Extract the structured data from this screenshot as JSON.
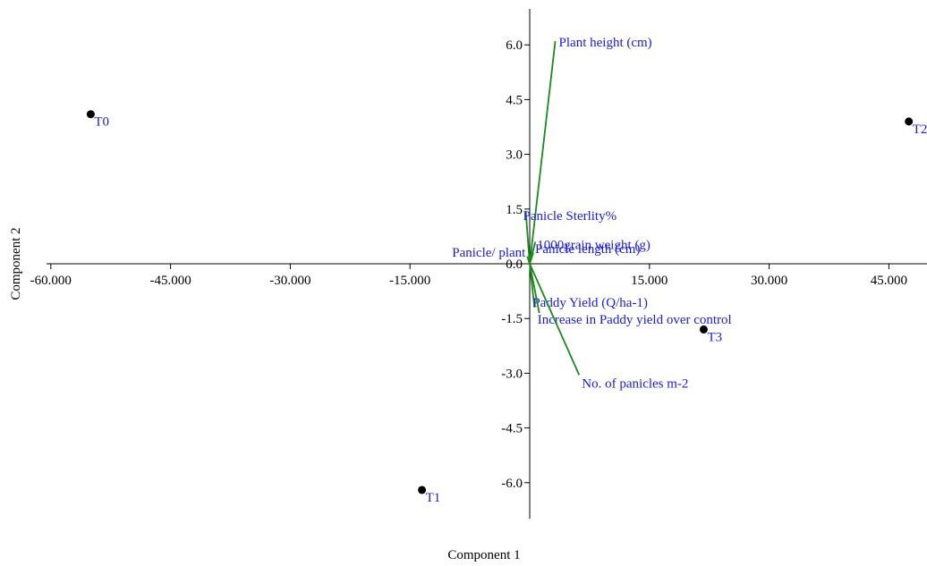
{
  "chart_data": {
    "type": "scatter",
    "subtype": "pca-biplot",
    "title": "",
    "xlabel": "Component 1",
    "ylabel": "Component 2",
    "xlim": [
      -60,
      50
    ],
    "ylim": [
      -7,
      7
    ],
    "x_ticks": [
      -60,
      -45,
      -30,
      -15,
      15,
      30,
      45
    ],
    "x_tick_labels": [
      "-60.000",
      "-45.000",
      "-30.000",
      "-15.000",
      "15.000",
      "30.000",
      "45.000"
    ],
    "y_ticks": [
      -6,
      -4.5,
      -3,
      -1.5,
      0,
      1.5,
      3,
      4.5,
      6
    ],
    "y_tick_labels": [
      "-6.0",
      "-4.5",
      "-3.0",
      "-1.5",
      "0.0",
      "1.5",
      "3.0",
      "4.5",
      "6.0"
    ],
    "grid": false,
    "colors": {
      "points": "#000000",
      "point_labels": "#1a1ae6",
      "vectors": "#1a8a1a",
      "vector_labels": "#1a1ae6",
      "axes": "#000000"
    },
    "points": [
      {
        "label": "T0",
        "x": -55.0,
        "y": 4.1
      },
      {
        "label": "T1",
        "x": -13.5,
        "y": -6.2
      },
      {
        "label": "T2",
        "x": 47.5,
        "y": 3.9
      },
      {
        "label": "T3",
        "x": 21.8,
        "y": -1.8
      }
    ],
    "vectors": [
      {
        "label": "Plant height (cm)",
        "x": 3.2,
        "y": 6.1
      },
      {
        "label": "Panicle Sterlity%",
        "x": -0.5,
        "y": 1.45
      },
      {
        "label": "1000grain weight (g)",
        "x": 0.7,
        "y": 0.6
      },
      {
        "label": "Panicle/ plant",
        "x": -0.3,
        "y": 0.2
      },
      {
        "label": "Panicle length (cm)",
        "x": 0.45,
        "y": 0.3
      },
      {
        "label": "Paddy Yield (Q/ha-1)",
        "x": 0.6,
        "y": -1.2
      },
      {
        "label": "Increase in Paddy yield over control",
        "x": 1.2,
        "y": -1.35
      },
      {
        "label": "No. of panicles m-2",
        "x": 6.2,
        "y": -3.05
      }
    ]
  }
}
